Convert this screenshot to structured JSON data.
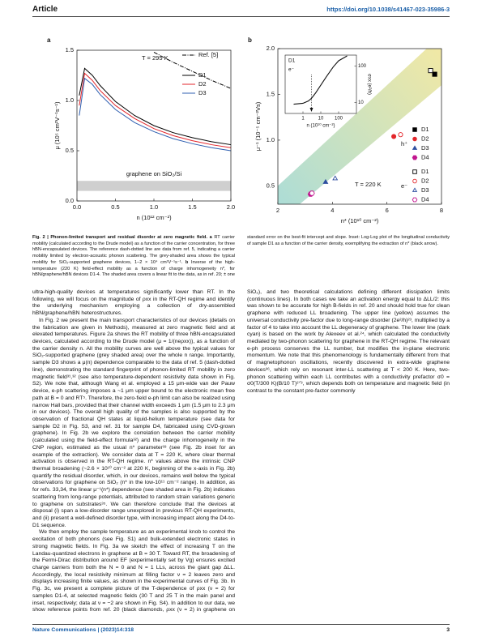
{
  "header": {
    "section": "Article",
    "doi": "https://doi.org/10.1038/s41467-023-35986-3"
  },
  "chart_data": [
    {
      "type": "line",
      "panel": "a",
      "annotation": "T = 295 K",
      "xlabel": "n (10¹² cm⁻²)",
      "ylabel": "μ (10⁵ cm²V⁻¹s⁻¹)",
      "x": [
        0.03,
        0.1,
        0.2,
        0.3,
        0.5,
        0.75,
        1.0,
        1.25,
        1.5,
        1.75,
        2.0
      ],
      "series": [
        {
          "name": "Ref. [5]",
          "color": "#000000",
          "style": "dashdot",
          "values": [
            null,
            null,
            null,
            null,
            null,
            null,
            1.48,
            1.38,
            1.29,
            1.2,
            1.12
          ]
        },
        {
          "name": "D1",
          "color": "#000000",
          "style": "solid",
          "values": [
            1.05,
            1.32,
            1.25,
            1.15,
            0.99,
            0.85,
            0.75,
            0.68,
            0.63,
            0.59,
            0.56
          ]
        },
        {
          "name": "D2",
          "color": "#e3262b",
          "style": "solid",
          "values": [
            0.95,
            1.27,
            1.2,
            1.1,
            0.95,
            0.82,
            0.72,
            0.65,
            0.6,
            0.56,
            0.53
          ]
        },
        {
          "name": "D3",
          "color": "#2f5fb0",
          "style": "solid",
          "values": [
            0.85,
            1.22,
            1.16,
            1.06,
            0.91,
            0.78,
            0.69,
            0.62,
            0.57,
            0.53,
            0.5
          ]
        }
      ],
      "xlim": [
        0,
        2
      ],
      "ylim": [
        0,
        1.5
      ],
      "xticks": [
        {
          "value": 0,
          "label": "0.0"
        },
        0.5,
        {
          "value": 1,
          "label": "1.0"
        },
        1.5,
        {
          "value": 2,
          "label": "2.0"
        }
      ],
      "yticks": [
        {
          "value": 0,
          "label": "0.0"
        },
        0.5,
        {
          "value": 1,
          "label": "1.0"
        },
        1.5
      ],
      "band": {
        "label": "graphene on SiO₂/Si",
        "range": [
          0.1,
          0.2
        ],
        "color": "#cfcfcf"
      },
      "legend": "upper right"
    },
    {
      "type": "scatter",
      "panel": "b",
      "annotation": "T = 220 K",
      "xlabel": "n* (10¹⁰ cm⁻²)",
      "ylabel": "μ⁻¹ (10⁻⁵ cm⁻²Vs)",
      "xlim": [
        2,
        8
      ],
      "ylim": [
        0.3,
        2.0
      ],
      "xticks": [
        2,
        4,
        6,
        8
      ],
      "yticks": [
        0.5,
        {
          "value": 1,
          "label": "1.0"
        },
        1.5,
        {
          "value": 2,
          "label": "2.0"
        }
      ],
      "groups": [
        {
          "label": "h⁺",
          "filled": true,
          "series": [
            {
              "name": "D1",
              "color": "#000000",
              "marker": "square",
              "x": [
                7.75
              ],
              "values": [
                1.72
              ]
            },
            {
              "name": "D2",
              "color": "#e3262b",
              "marker": "circle",
              "x": [
                6.25
              ],
              "values": [
                1.04
              ]
            },
            {
              "name": "D3",
              "color": "#2f4fa0",
              "marker": "triangle",
              "x": [
                3.75
              ],
              "values": [
                0.54
              ]
            },
            {
              "name": "D4",
              "color": "#c2168f",
              "marker": "hexagon",
              "x": [
                3.2
              ],
              "values": [
                0.41
              ]
            }
          ]
        },
        {
          "label": "e⁻",
          "filled": false,
          "series": [
            {
              "name": "D1",
              "color": "#000000",
              "marker": "square",
              "x": [
                7.6
              ],
              "values": [
                1.76
              ]
            },
            {
              "name": "D2",
              "color": "#e3262b",
              "marker": "circle",
              "x": [
                6.5
              ],
              "values": [
                1.06
              ]
            },
            {
              "name": "D3",
              "color": "#2f4fa0",
              "marker": "triangle",
              "x": [
                4.1
              ],
              "values": [
                0.58
              ]
            },
            {
              "name": "D4",
              "color": "#c2168f",
              "marker": "hexagon",
              "x": [
                3.25
              ],
              "values": [
                0.42
              ]
            }
          ]
        }
      ],
      "fit_band": {
        "x": [
          2,
          8
        ],
        "lower": [
          0.1,
          1.6
        ],
        "upper": [
          0.5,
          2.15
        ]
      },
      "inset": {
        "label": "D1",
        "carrier": "e⁻",
        "xlabel": "n (10¹⁰ cm⁻²)",
        "ylabel": "σxx (e²/h)",
        "log": true,
        "xlim": [
          0.1,
          1000
        ],
        "ylim": [
          5,
          200
        ],
        "xticks": [
          1,
          10,
          100
        ],
        "yticks": [
          10,
          100
        ],
        "x": [
          0.3,
          1,
          2,
          3,
          5,
          10,
          20,
          50,
          100,
          300
        ],
        "values": [
          9,
          9.5,
          11,
          13,
          18,
          30,
          50,
          95,
          140,
          190
        ],
        "n_star": 3
      }
    }
  ],
  "caption": {
    "title": "Fig. 2 | Phonon-limited transport and residual disorder at zero magnetic field.",
    "a_label": "a",
    "a_text": "RT carrier mobility (calculated according to the Drude model) as a function of the carrier concentration, for three hBN-encapsulated devices. The reference dash-dotted line are data from ref. 5, indicating a carrier mobility limited by electron-acoustic phonon scattering. The grey-shaded area shows the typical mobility for SiO₂-supported graphene devices, 1–2 × 10⁴ cm²V⁻¹s⁻¹.",
    "b_label": "b",
    "b_text": "Inverse of the high-temperature (220 K) field-effect mobility as a function of charge inhomogeneity n*, for hBN/graphene/hBN devices D1-4. The shaded area covers a linear fit to the data, as in ref. 20; ± one standard error on the best-fit intercept and slope. Inset: Log-Log plot of the longitudinal conductivity of sample D1 as a function of the carrier density, exemplifying the extraction of n* (black arrow)."
  },
  "body": {
    "paragraphs": [
      "ultra-high-quality devices at temperatures significantly lower than RT. In the following, we will focus on the magnitude of ρxx in the RT-QH regime and identify the underlying mechanism employing a collection of dry-assembled hBN/graphene/hBN heterostructures.",
      "In Fig. 2 we present the main transport characteristics of our devices (details on the fabrication are given in Methods), measured at zero magnetic field and at elevated temperatures. Figure 2a shows the RT mobility of three hBN-encapsulated devices, calculated according to the Drude model (μ = 1/(neρxx)), as a function of the carrier density n. All the mobility curves are well above the typical values for SiO₂-supported graphene (grey shaded area) over the whole n range. Importantly, sample D3 shows a μ(n) dependence comparable to the data of ref. 5 (dash-dotted line), demonstrating the standard fingerprint of phonon-limited RT mobility in zero magnetic field³¹,³² (see also temperature-dependent resistivity data shown in Fig. S2). We note that, although Wang et al. employed a 15 μm-wide van der Pauw device, e-ph scattering imposes a ~1 μm upper bound to the electronic mean free path at B = 0 and RT⁵. Therefore, the zero-field e-ph limit can also be realized using narrow Hall bars, provided that their channel width exceeds 1 μm (1.5 μm to 2.3 μm in our devices). The overall high quality of the samples is also supported by the observation of fractional QH states at liquid-helium temperature (see data for sample D2 in Fig. S3, and ref. 31 for sample D4, fabricated using CVD-grown graphene). In Fig. 2b we explore the correlation between the carrier mobility (calculated using the field-effect formula³²) and the charge inhomogeneity in the CNP region, estimated as the usual n* parameter³³ (see Fig. 2b inset for an example of the extraction). We consider data at T = 220 K, where clear thermal activation is observed in the RT-QH regime. n* values above the intrinsic CNP thermal broadening (~2.6 × 10¹⁰ cm⁻² at 220 K, beginning of the x-axis in Fig. 2b) quantify the residual disorder, which, in our devices, remains well below the typical observations for graphene on SiO₂ (n* in the low-10¹¹ cm⁻² range). In addition, as for refs. 33,34, the linear μ⁻¹(n*) dependence (see shaded area in Fig. 2b) indicates scattering from long-range potentials, attributed to random strain variations generic to graphene on substrates³⁵. We can therefore conclude that the devices at disposal (i) span a low-disorder range unexplored in previous RT-QH experiments, and (ii) present a well-defined disorder type, with increasing impact along the D4-to-D1 sequence.",
      "We then employ the sample temperature as an experimental knob to control the excitation of both phonons (see Fig. S1) and bulk-extended electronic states in strong magnetic fields. In Fig. 3a we sketch the effect of increasing T on the Landau-quantized electrons in graphene at B = 30 T. Toward RT, the broadening of the Fermi-Dirac distribution around EF (experimentally set by Vg) ensures excited charge carriers from both the N = 0 and N = 1 LLs, across the giant gap ΔLL. Accordingly, the local resistivity minimum at filling factor ν = 2 leaves zero and displays increasing finite values, as shown in the experimental curves of Fig. 3b. In Fig. 3c, we present a complete picture of the T-dependence of ρxx (ν = 2) for samples D1-4, at selected magnetic fields (30 T and 25 T in the main panel and inset, respectively; data at ν = −2 are shown in Fig. S4). In addition to our data, we show reference points from ref. 20 (black diamonds, ρxx (ν = 2) in graphene on SiO₂), and two theoretical calculations defining different dissipation limits (continuous lines). In both cases we take an activation energy equal to ΔLL/2: this was shown to be accurate for high B-fields in ref. 20 and should hold true for clean graphene with reduced LL broadening. The upper line (yellow) assumes the universal conductivity pre-factor due to long-range disorder (2e²/h)²³, multiplied by a factor of 4 to take into account the LL degeneracy of graphene. The lower line (dark cyan) is based on the work by Alexeev et al.²⁴, which calculated the conductivity mediated by two-phonon scattering for graphene in the RT-QH regime. The relevant e-ph process conserves the LL number, but modifies the in-plane electronic momentum. We note that this phenomenology is fundamentally different from that of magnetophonon oscillations, recently discovered in extra-wide graphene devices³⁶, which rely on resonant inter-LL scattering at T < 200 K. Here, two-phonon scattering within each LL contributes with a conductivity prefactor σ0 = σ0(T/300 K)(B/10 T)²ᐟ³, which depends both on temperature and magnetic field (in contrast to the constant pre-factor commonly"
    ]
  },
  "footer": {
    "journal": "Nature Communications | (2023)14:318",
    "page": "3"
  }
}
